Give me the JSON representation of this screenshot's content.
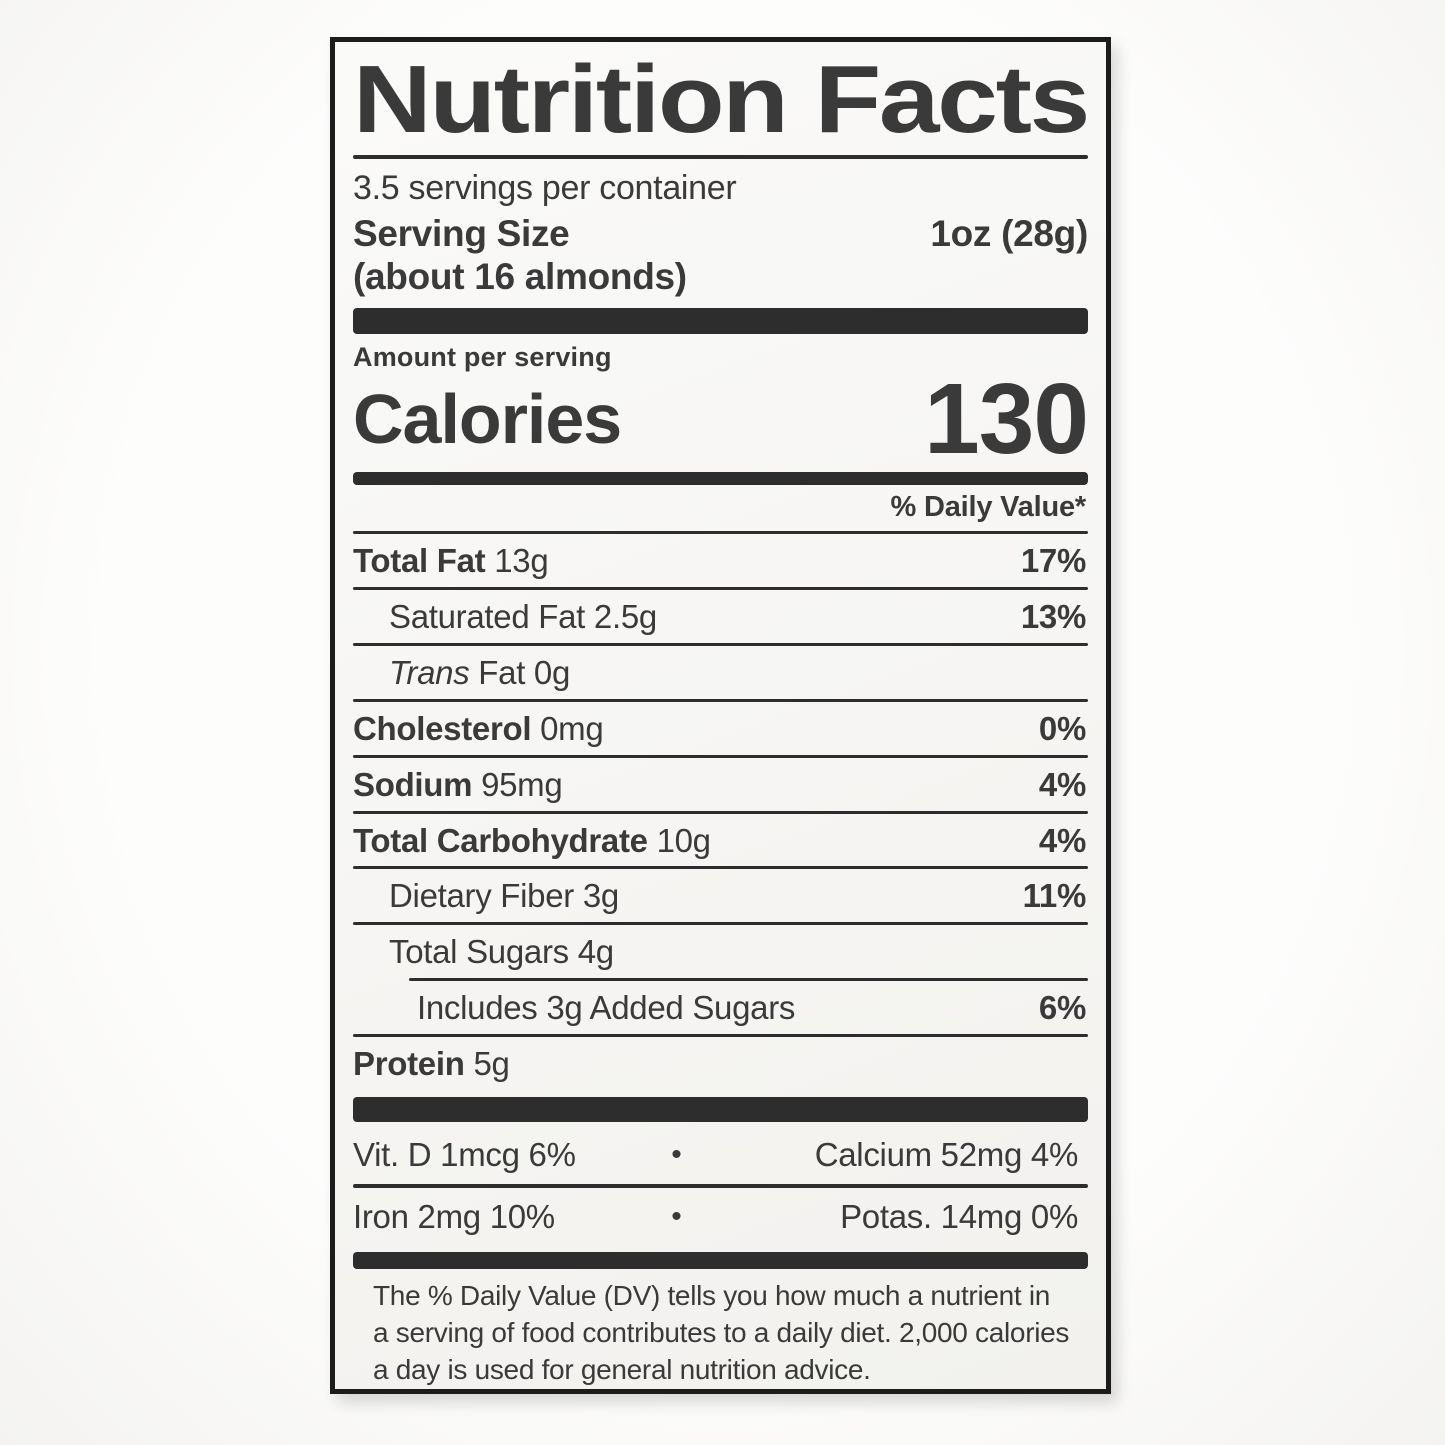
{
  "colors": {
    "page-bg": "#fbfbfa",
    "label-bg": "#f7f6f4",
    "ink": "#3a3a3a",
    "bar": "#2d2d2d",
    "border": "#1c1c1c"
  },
  "label": {
    "title": "Nutrition Facts",
    "servings_per_container": "3.5 servings per container",
    "serving_size": {
      "label": "Serving Size",
      "value": "1oz (28g)",
      "note": "(about 16 almonds)"
    },
    "amount_per_serving": "Amount per serving",
    "calories": {
      "label": "Calories",
      "value": "130"
    },
    "daily_value_header": "% Daily Value*",
    "rows": [
      {
        "bold": "Total Fat",
        "reg": "13g",
        "dv": "17%"
      },
      {
        "reg": "Saturated Fat 2.5g",
        "dv": "13%"
      },
      {
        "italic": "Trans",
        "reg": "Fat 0g",
        "dv": ""
      },
      {
        "bold": "Cholesterol",
        "reg": "0mg",
        "dv": "0%"
      },
      {
        "bold": "Sodium",
        "reg": "95mg",
        "dv": "4%"
      },
      {
        "bold": "Total Carbohydrate",
        "reg": "10g",
        "dv": "4%"
      },
      {
        "reg": "Dietary Fiber 3g",
        "dv": "11%"
      },
      {
        "reg": "Total Sugars 4g",
        "dv": ""
      },
      {
        "reg": "Includes 3g Added Sugars",
        "dv": "6%"
      },
      {
        "bold": "Protein",
        "reg": "5g",
        "dv": ""
      }
    ],
    "micronutrients": {
      "bullet": "•",
      "rows": [
        {
          "left": "Vit. D 1mcg 6%",
          "right": "Calcium 52mg 4%"
        },
        {
          "left": "Iron 2mg 10%",
          "right": "Potas. 14mg 0%"
        }
      ]
    },
    "footnote_lines": [
      "The % Daily Value (DV) tells you how much a nutrient in",
      "a serving of food contributes to a daily diet. 2,000 calories",
      "a day is used for general nutrition advice."
    ]
  }
}
